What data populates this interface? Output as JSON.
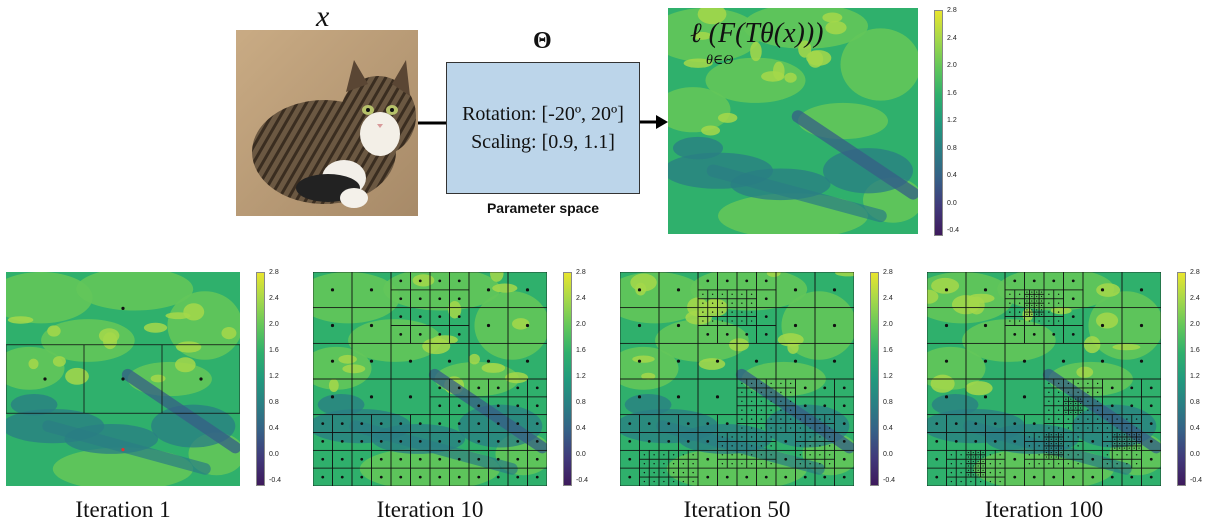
{
  "input": {
    "label": "x"
  },
  "params": {
    "symbol": "Θ",
    "rotation": "Rotation: [-20º, 20º]",
    "scaling": "Scaling: [0.9, 1.1]",
    "caption": "Parameter space"
  },
  "loss": {
    "formula_main": "ℓ (F(Tθ(x)))",
    "formula_sub": "θ∈Θ"
  },
  "colorbar": {
    "ticks": [
      "2.8",
      "2.4",
      "2.0",
      "1.6",
      "1.2",
      "0.8",
      "0.4",
      "0.0",
      "-0.4"
    ],
    "colors": [
      "#e8e52e",
      "#a5d84a",
      "#63c75a",
      "#2fb06c",
      "#219a7d",
      "#2a7e84",
      "#365f86",
      "#41397a",
      "#3e1a5c"
    ]
  },
  "iterations": [
    {
      "caption": "Iteration 1",
      "level": 1
    },
    {
      "caption": "Iteration 10",
      "level": 10
    },
    {
      "caption": "Iteration 50",
      "level": 50
    },
    {
      "caption": "Iteration 100",
      "level": 100
    }
  ]
}
